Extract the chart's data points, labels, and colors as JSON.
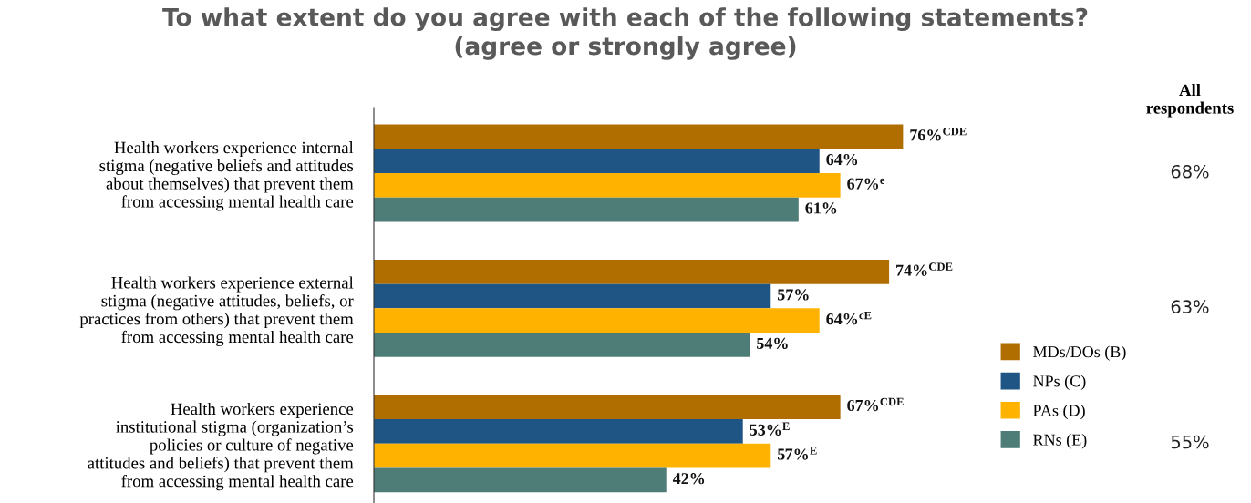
{
  "chart_data": {
    "type": "bar",
    "orientation": "horizontal",
    "title": "To what extent do you agree with each of the following statements?\n(agree or strongly agree)",
    "categories": [
      "Health workers experience internal\nstigma (negative beliefs and attitudes\nabout themselves) that prevent them\nfrom accessing mental health care",
      "Health workers experience external\nstigma (negative attitudes, beliefs, or\npractices from others) that prevent them\nfrom accessing mental health care",
      "Health workers experience\ninstitutional stigma (organization’s\npolicies or culture of negative\nattitudes and beliefs) that prevent them\nfrom accessing mental health care"
    ],
    "series": [
      {
        "name": "MDs/DOs (B)",
        "color": "#b06d00",
        "values": [
          76,
          74,
          67
        ],
        "value_labels": [
          "76%$^{CDE}$",
          "74%$^{CDE}$",
          "67%$^{CDE}$"
        ]
      },
      {
        "name": "NPs (C)",
        "color": "#1f5585",
        "values": [
          64,
          57,
          53
        ],
        "value_labels": [
          "64%",
          "57%",
          "53%$^{E}$"
        ]
      },
      {
        "name": "PAs (D)",
        "color": "#ffb300",
        "values": [
          67,
          64,
          57
        ],
        "value_labels": [
          "67%$^{e}$",
          "64%$^{cE}$",
          "57%$^{E}$"
        ]
      },
      {
        "name": "RNs (E)",
        "color": "#4e7d78",
        "values": [
          61,
          54,
          42
        ],
        "value_labels": [
          "61%",
          "54%",
          "42%"
        ]
      }
    ],
    "legend": "right",
    "grid": false,
    "tick_labels": "y",
    "annotations": [
      "All\nrespondents",
      "68%",
      "63%",
      "55%"
    ]
  }
}
